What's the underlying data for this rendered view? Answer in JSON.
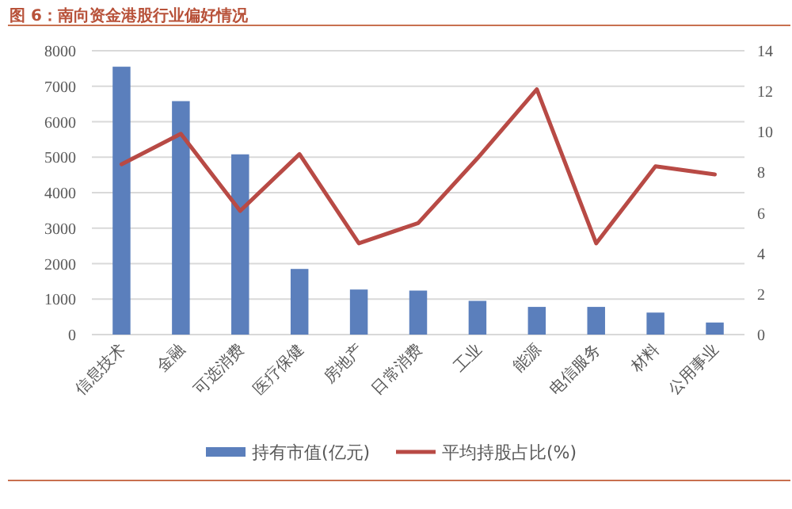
{
  "chart_data": {
    "type": "bar",
    "title": "图 6：南向资金港股行业偏好情况",
    "categories": [
      "信息技术",
      "金融",
      "可选消费",
      "医疗保健",
      "房地产",
      "日常消费",
      "工业",
      "能源",
      "电信服务",
      "材料",
      "公用事业"
    ],
    "series": [
      {
        "name": "持有市值(亿元)",
        "color": "#5b7fbc",
        "values": [
          7550,
          6580,
          5080,
          1850,
          1270,
          1240,
          950,
          780,
          780,
          620,
          340
        ]
      },
      {
        "name": "平均持股占比(%)",
        "type": "line",
        "axis": "y2",
        "color": "#b84a45",
        "values": [
          8.4,
          9.9,
          6.1,
          8.9,
          4.5,
          5.5,
          8.7,
          12.1,
          4.5,
          8.3,
          7.9
        ]
      }
    ],
    "ylim": [
      0,
      8000
    ],
    "yticks": [
      0,
      1000,
      2000,
      3000,
      4000,
      5000,
      6000,
      7000,
      8000
    ],
    "y2lim": [
      0,
      14
    ],
    "y2ticks": [
      0,
      2,
      4,
      6,
      8,
      10,
      12,
      14
    ],
    "grid": "y",
    "legend": "bottom"
  }
}
